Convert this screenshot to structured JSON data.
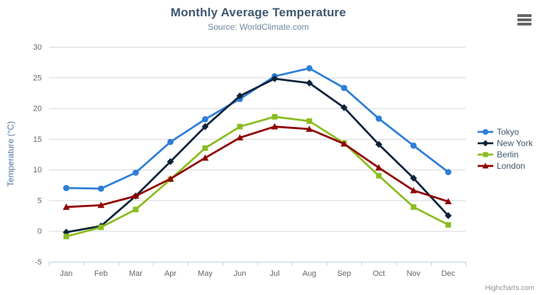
{
  "credits": {
    "text": "Highcharts.com"
  },
  "chart_data": {
    "type": "line",
    "title": "Monthly Average Temperature",
    "subtitle": "Source: WorldClimate.com",
    "categories": [
      "Jan",
      "Feb",
      "Mar",
      "Apr",
      "May",
      "Jun",
      "Jul",
      "Aug",
      "Sep",
      "Oct",
      "Nov",
      "Dec"
    ],
    "xlabel": "",
    "ylabel": "Temperature (°C)",
    "ylim": [
      -5,
      30
    ],
    "y_ticks": [
      -5,
      0,
      5,
      10,
      15,
      20,
      25,
      30
    ],
    "grid": "horizontal",
    "legend_position": "right",
    "colors": {
      "grid_line": "#D8D8D8",
      "axis_line": "#C0D0E0",
      "axis_label": "#666666",
      "title": "#3E576F",
      "subtitle": "#6D869F",
      "y_axis_title": "#4d759e",
      "legend_text": "#3E576F",
      "credits_text": "#909090",
      "menu_icon": "#666666"
    },
    "series": [
      {
        "name": "Tokyo",
        "color": "#2f7ed8",
        "marker": "circle",
        "values": [
          7.0,
          6.9,
          9.5,
          14.5,
          18.2,
          21.5,
          25.2,
          26.5,
          23.3,
          18.3,
          13.9,
          9.6
        ]
      },
      {
        "name": "New York",
        "color": "#0d233a",
        "marker": "diamond",
        "values": [
          -0.2,
          0.8,
          5.7,
          11.3,
          17.0,
          22.0,
          24.8,
          24.1,
          20.1,
          14.1,
          8.6,
          2.5
        ]
      },
      {
        "name": "Berlin",
        "color": "#8bbc21",
        "marker": "square",
        "values": [
          -0.9,
          0.6,
          3.5,
          8.4,
          13.5,
          17.0,
          18.6,
          17.9,
          14.3,
          9.0,
          3.9,
          1.0
        ]
      },
      {
        "name": "London",
        "color": "#910000",
        "marker": "triangle",
        "values": [
          3.9,
          4.2,
          5.7,
          8.5,
          11.9,
          15.2,
          17.0,
          16.6,
          14.2,
          10.3,
          6.6,
          4.8
        ]
      }
    ]
  }
}
